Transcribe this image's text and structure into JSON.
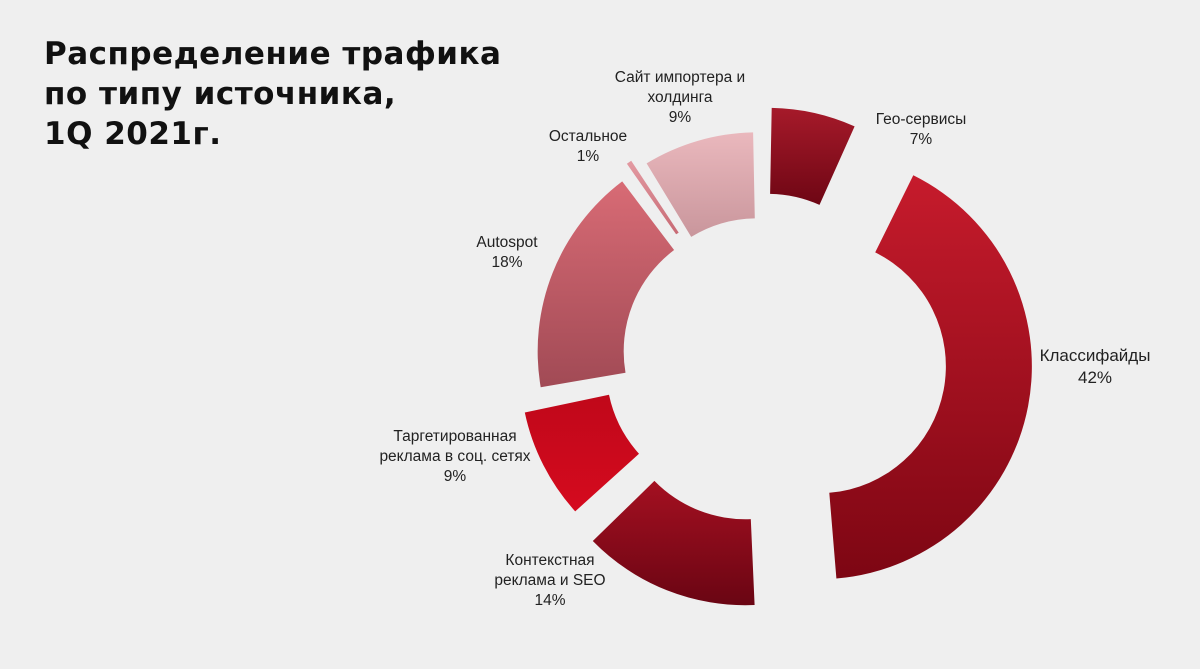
{
  "title_lines": [
    "Распределение трафика",
    "по типу источника,",
    "1Q 2021г."
  ],
  "chart_data": {
    "type": "pie",
    "variant": "exploded donut",
    "title": "Распределение трафика по типу источника, 1Q 2021г.",
    "unit": "%",
    "slices": [
      {
        "name": "Гео-сервисы",
        "label_lines": [
          "Гео-сервисы"
        ],
        "value_label": "7%",
        "value": 7,
        "color_dark": "#6e0614",
        "color_light": "#a61a2a"
      },
      {
        "name": "Классифайды",
        "label_lines": [
          "Классифайды"
        ],
        "value_label": "42%",
        "value": 42,
        "color_dark": "#7d0613",
        "color_light": "#c61b2c"
      },
      {
        "name": "Контекстная реклама и SEO",
        "label_lines": [
          "Контекстная",
          "реклама и SEO"
        ],
        "value_label": "14%",
        "value": 14,
        "color_dark": "#6a0513",
        "color_light": "#a41021"
      },
      {
        "name": "Таргетированная реклама в соц. сетях",
        "label_lines": [
          "Таргетированная",
          "реклама в соц. сетях"
        ],
        "value_label": "9%",
        "value": 9,
        "color_dark": "#d50a1e",
        "color_light": "#c0081a"
      },
      {
        "name": "Autospot",
        "label_lines": [
          "Autospot"
        ],
        "value_label": "18%",
        "value": 18,
        "color_dark": "#a14a55",
        "color_light": "#d86b75"
      },
      {
        "name": "Остальное",
        "label_lines": [
          "Остальное"
        ],
        "value_label": "1%",
        "value": 1,
        "color_dark": "#c86a74",
        "color_light": "#e39aa2"
      },
      {
        "name": "Сайт импортера и холдинга",
        "label_lines": [
          "Сайт импортера и",
          "холдинга"
        ],
        "value_label": "9%",
        "value": 9,
        "color_dark": "#c9969c",
        "color_light": "#eab8bd"
      }
    ]
  }
}
